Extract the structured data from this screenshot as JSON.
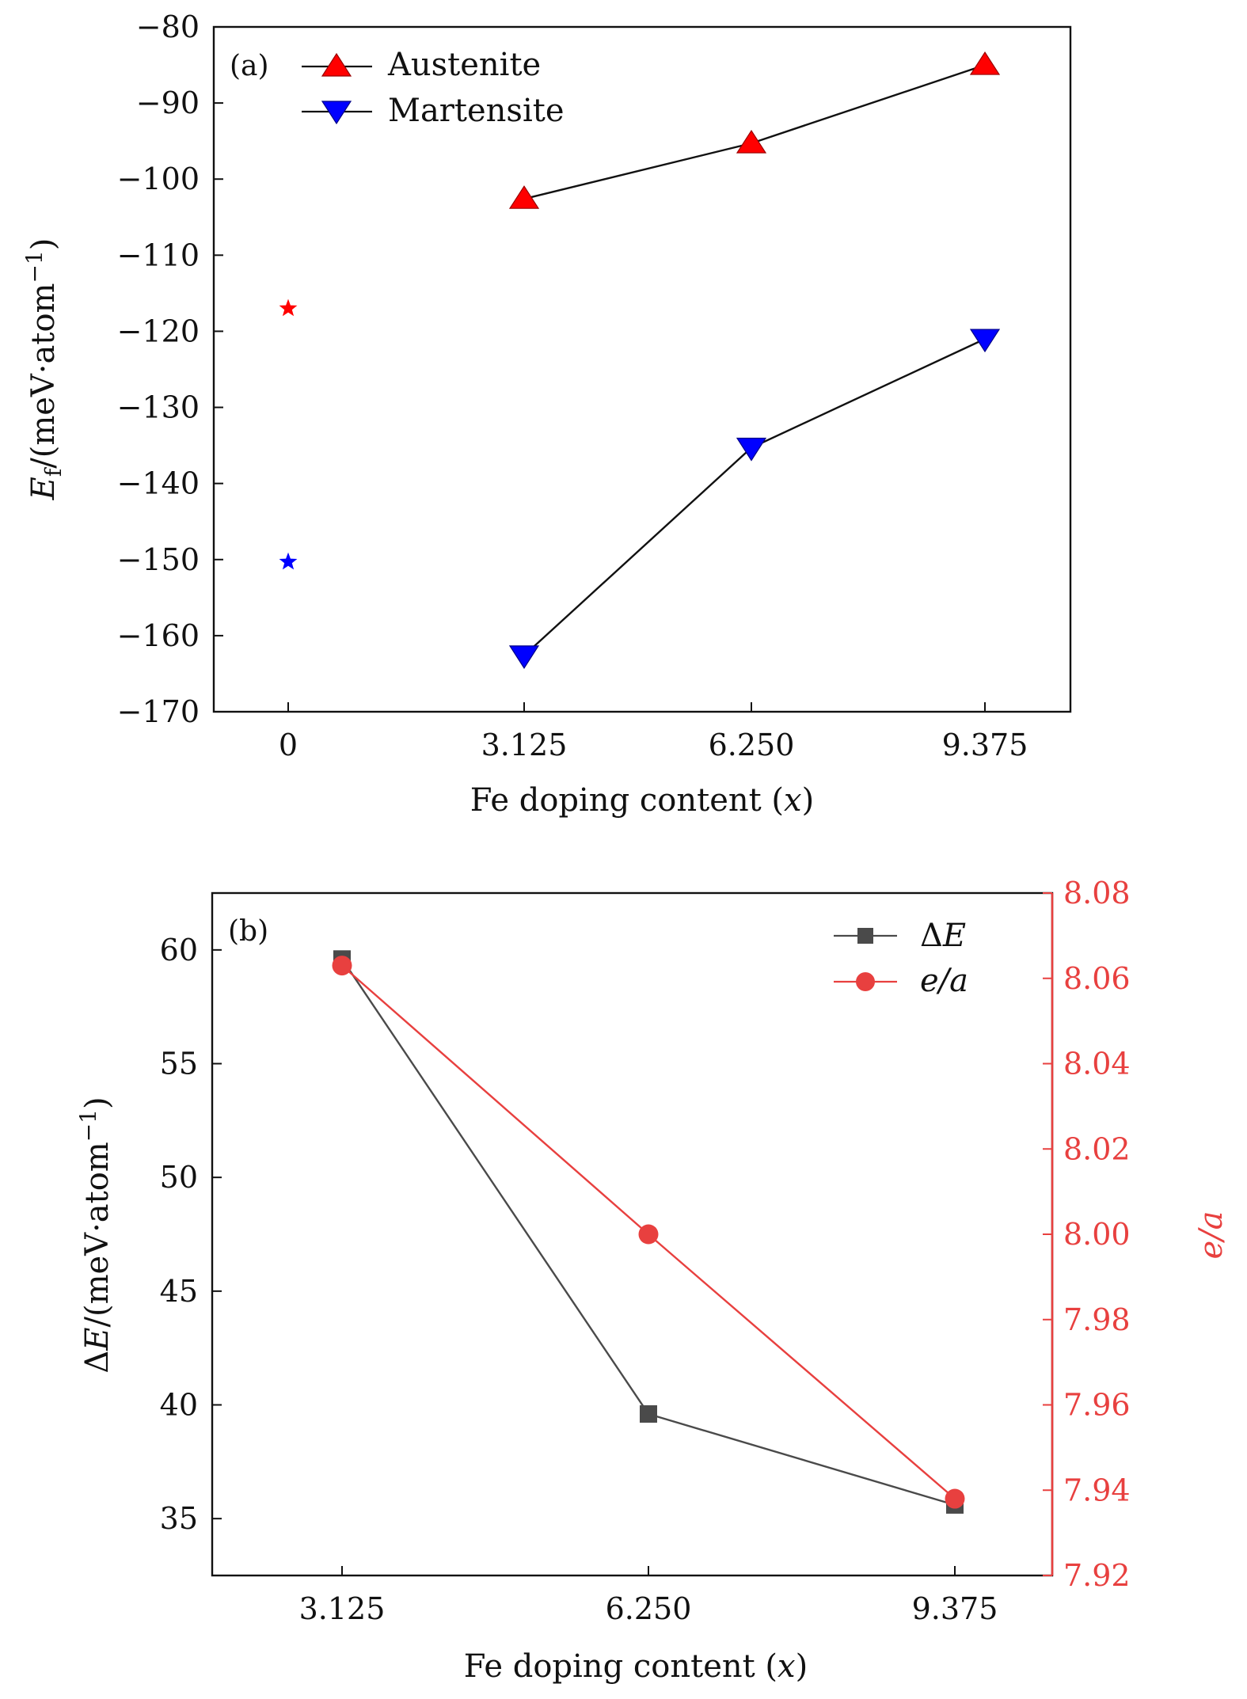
{
  "chart_data": [
    {
      "type": "line",
      "panel_label": "(a)",
      "categories": [
        "0",
        "3.125",
        "6.250",
        "9.375"
      ],
      "x": [
        0,
        3.125,
        6.25,
        9.375
      ],
      "xlabel": "Fe doping content (x)",
      "xlabel_parts": {
        "text": "Fe doping content (",
        "var": "x",
        "close": ")"
      },
      "ylabel": "Ef/(meV·atom−1)",
      "ylabel_parts": {
        "var": "E",
        "sub": "f",
        "unit": "/(meV·atom",
        "sup": "−1",
        "close": ")"
      },
      "ylim": [
        -170,
        -80
      ],
      "yticks": [
        -80,
        -90,
        -100,
        -110,
        -120,
        -130,
        -140,
        -150,
        -160,
        -170
      ],
      "ytick_labels": [
        "−80",
        "−90",
        "−100",
        "−110",
        "−120",
        "−130",
        "−140",
        "−150",
        "−160",
        "−170"
      ],
      "xtick_labels": [
        "0",
        "3.125",
        "6.250",
        "9.375"
      ],
      "grid": false,
      "legend_position": "top-left",
      "series": [
        {
          "name": "Austenite",
          "color": "#ff0000",
          "marker": "triangle-up",
          "x": [
            3.125,
            6.25,
            9.375
          ],
          "values": [
            -102.6,
            -95.3,
            -85.0
          ]
        },
        {
          "name": "Martensite",
          "color": "#0000ff",
          "marker": "triangle-down",
          "x": [
            3.125,
            6.25,
            9.375
          ],
          "values": [
            -162.6,
            -135.3,
            -121.0
          ]
        }
      ],
      "extra_points": [
        {
          "x": 0,
          "value": -117.0,
          "color": "#ff0000",
          "marker": "star"
        },
        {
          "x": 0,
          "value": -150.3,
          "color": "#0000ff",
          "marker": "star"
        }
      ]
    },
    {
      "type": "line",
      "panel_label": "(b)",
      "categories": [
        "3.125",
        "6.250",
        "9.375"
      ],
      "x": [
        3.125,
        6.25,
        9.375
      ],
      "xlabel": "Fe doping content (x)",
      "xlabel_parts": {
        "text": "Fe doping content (",
        "var": "x",
        "close": ")"
      },
      "ylabel": "ΔE/(meV·atom−1)",
      "ylabel_parts": {
        "pre": "Δ",
        "var": "E",
        "unit": "/(meV·atom",
        "sup": "−1",
        "close": ")"
      },
      "y2label": "e/a",
      "ylim": [
        32.5,
        62.5
      ],
      "yticks": [
        35,
        40,
        45,
        50,
        55,
        60
      ],
      "ytick_labels": [
        "35",
        "40",
        "45",
        "50",
        "55",
        "60"
      ],
      "y2lim": [
        7.92,
        8.08
      ],
      "y2ticks": [
        7.92,
        7.94,
        7.96,
        7.98,
        8.0,
        8.02,
        8.04,
        8.06,
        8.08
      ],
      "y2tick_labels": [
        "7.92",
        "7.94",
        "7.96",
        "7.98",
        "8.00",
        "8.02",
        "8.04",
        "8.06",
        "8.08"
      ],
      "xtick_labels": [
        "3.125",
        "6.250",
        "9.375"
      ],
      "grid": false,
      "legend_position": "top-right",
      "series": [
        {
          "name": "ΔE",
          "name_parts": {
            "pre": "Δ",
            "var": "E"
          },
          "color": "#4a4a4a",
          "marker": "square",
          "axis": "left",
          "x": [
            3.125,
            6.25,
            9.375
          ],
          "values": [
            59.6,
            39.6,
            35.6
          ]
        },
        {
          "name": "e/a",
          "name_parts": {
            "var": "e/a"
          },
          "color": "#e8403f",
          "marker": "circle",
          "axis": "right",
          "x": [
            3.125,
            6.25,
            9.375
          ],
          "values": [
            8.063,
            8.0,
            7.938
          ]
        }
      ]
    }
  ]
}
